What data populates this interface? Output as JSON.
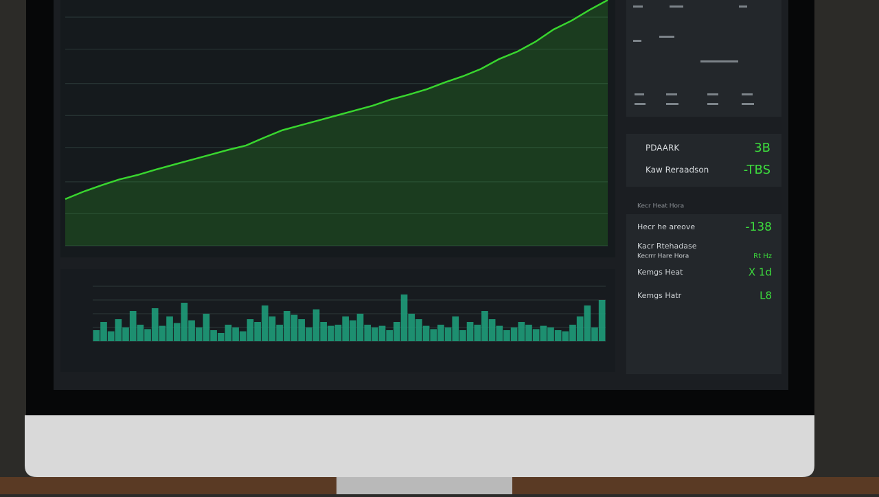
{
  "panels": {
    "stats": [
      {
        "label": "PDAARK",
        "value": "3B"
      },
      {
        "label": "Kaw Reraadson",
        "value": "-TBS"
      }
    ],
    "section_title": "Kecr Heat Hora",
    "list": [
      {
        "label": "Hecr he areove",
        "value": "-138"
      },
      {
        "label": "Kacr Rtehadase",
        "value": ""
      },
      {
        "label": "Kecrrr Hare Hora",
        "value": "Rt Hz"
      },
      {
        "label": "Kemgs Heat",
        "value": "X 1d"
      },
      {
        "label": "Kemgs Hatr",
        "value": "L8"
      }
    ]
  },
  "chart_data": [
    {
      "type": "area",
      "values": [
        19,
        22,
        24.6,
        27,
        28.8,
        31,
        33,
        35,
        37,
        39,
        40.8,
        44,
        47,
        49,
        51,
        53,
        55,
        57,
        59.5,
        61.5,
        63.7,
        66.5,
        69,
        72,
        76,
        79,
        83,
        88,
        91.6,
        96,
        100
      ],
      "color": "#39d62f",
      "ylim": [
        0,
        100
      ],
      "yticks": [
        0,
        13,
        26,
        40,
        53,
        66,
        80,
        93
      ],
      "grid": true
    },
    {
      "type": "bar",
      "values": [
        20,
        35,
        18,
        40,
        25,
        55,
        30,
        22,
        60,
        28,
        45,
        33,
        70,
        38,
        25,
        50,
        20,
        15,
        30,
        25,
        18,
        40,
        35,
        65,
        45,
        30,
        55,
        48,
        40,
        25,
        58,
        35,
        28,
        30,
        45,
        38,
        50,
        30,
        25,
        28,
        20,
        35,
        85,
        50,
        40,
        28,
        22,
        30,
        25,
        45,
        20,
        35,
        30,
        55,
        40,
        28,
        20,
        25,
        35,
        30,
        22,
        28,
        25,
        20,
        18,
        30,
        45,
        65,
        25,
        75
      ],
      "color": "#1fa37f",
      "ylim": [
        0,
        100
      ],
      "yticks": [
        0,
        25,
        50,
        75,
        100
      ],
      "grid": true
    }
  ]
}
